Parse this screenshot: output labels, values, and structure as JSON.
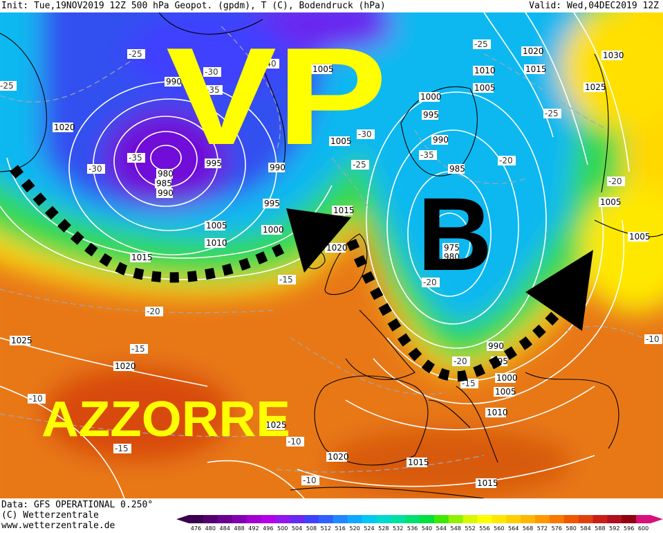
{
  "header": {
    "left_text": "Init: Tue,19NOV2019 12Z  500 hPa Geopot. (gpdm), T (C), Bodendruck (hPa)",
    "right_text": "Valid: Wed,04DEC2019 12Z"
  },
  "annotations": {
    "vp": "VP",
    "b": "B",
    "azzorre": "AZZORRE",
    "colors": {
      "vp": "#ffff00",
      "b": "#000000",
      "azzorre": "#ffff00",
      "front": "#000000"
    }
  },
  "pressure_labels": [
    "1020",
    "990",
    "980",
    "985",
    "990",
    "995",
    "990",
    "1005",
    "1005",
    "1010",
    "1015",
    "1000",
    "995",
    "1015",
    "1020",
    "1005",
    "1000",
    "995",
    "990",
    "985",
    "975",
    "980",
    "1010",
    "1005",
    "1020",
    "1015",
    "1025",
    "1030",
    "1005",
    "1005",
    "1025",
    "1020",
    "1025",
    "990",
    "995",
    "1000",
    "1005",
    "1010",
    "1015",
    "1020",
    "1015"
  ],
  "temperature_labels": [
    "-25",
    "-30",
    "-35",
    "-40",
    "-25",
    "-35",
    "-30",
    "-25",
    "-35",
    "-30",
    "-20",
    "-25",
    "-20",
    "-25",
    "-20",
    "-15",
    "-20",
    "-15",
    "-10",
    "-15",
    "-10",
    "-10",
    "-20",
    "-15",
    "-10"
  ],
  "footer": {
    "line1": "Data: GFS OPERATIONAL 0.250°",
    "line2": "(C) Wetterzentrale",
    "line3": "www.wetterzentrale.de"
  },
  "legend": {
    "values": [
      "476",
      "480",
      "484",
      "488",
      "492",
      "496",
      "500",
      "504",
      "508",
      "512",
      "516",
      "520",
      "524",
      "528",
      "532",
      "536",
      "540",
      "544",
      "548",
      "552",
      "556",
      "560",
      "564",
      "568",
      "572",
      "576",
      "580",
      "584",
      "588",
      "592",
      "596",
      "600"
    ],
    "colors": [
      "#3a004e",
      "#520070",
      "#6a0090",
      "#8200b0",
      "#a000d0",
      "#b400e6",
      "#9018f0",
      "#6a28f0",
      "#4040ff",
      "#3060ff",
      "#2088ff",
      "#10a8ff",
      "#00c8f0",
      "#00d8d0",
      "#00e0a0",
      "#00e070",
      "#00e040",
      "#40e800",
      "#90f000",
      "#d8f800",
      "#ffff00",
      "#ffe800",
      "#ffd000",
      "#ffb800",
      "#ff9800",
      "#f87800",
      "#f05800",
      "#e04010",
      "#c82018",
      "#b01020",
      "#900010",
      "#d8107c"
    ]
  }
}
